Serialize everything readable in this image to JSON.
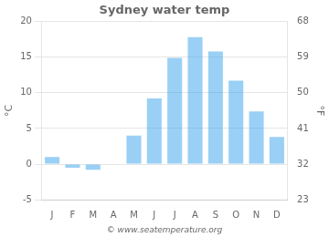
{
  "chart_data": {
    "type": "bar",
    "title": "Sydney water temp",
    "categories": [
      "J",
      "F",
      "M",
      "A",
      "M",
      "J",
      "J",
      "A",
      "S",
      "O",
      "N",
      "D"
    ],
    "values": [
      1.0,
      -0.5,
      -0.8,
      0.0,
      4.0,
      9.2,
      14.9,
      17.8,
      15.8,
      11.7,
      7.4,
      3.8
    ],
    "ylabel": "°C",
    "y2label": "°F",
    "ylim": [
      -5,
      20
    ],
    "yticks": [
      -5,
      0,
      5,
      10,
      15,
      20
    ],
    "y2lim": [
      23,
      68
    ],
    "y2ticks": [
      23,
      32,
      41,
      50,
      59,
      68
    ],
    "grid": true,
    "annotations": [
      "© www.seatemperature.org"
    ]
  }
}
